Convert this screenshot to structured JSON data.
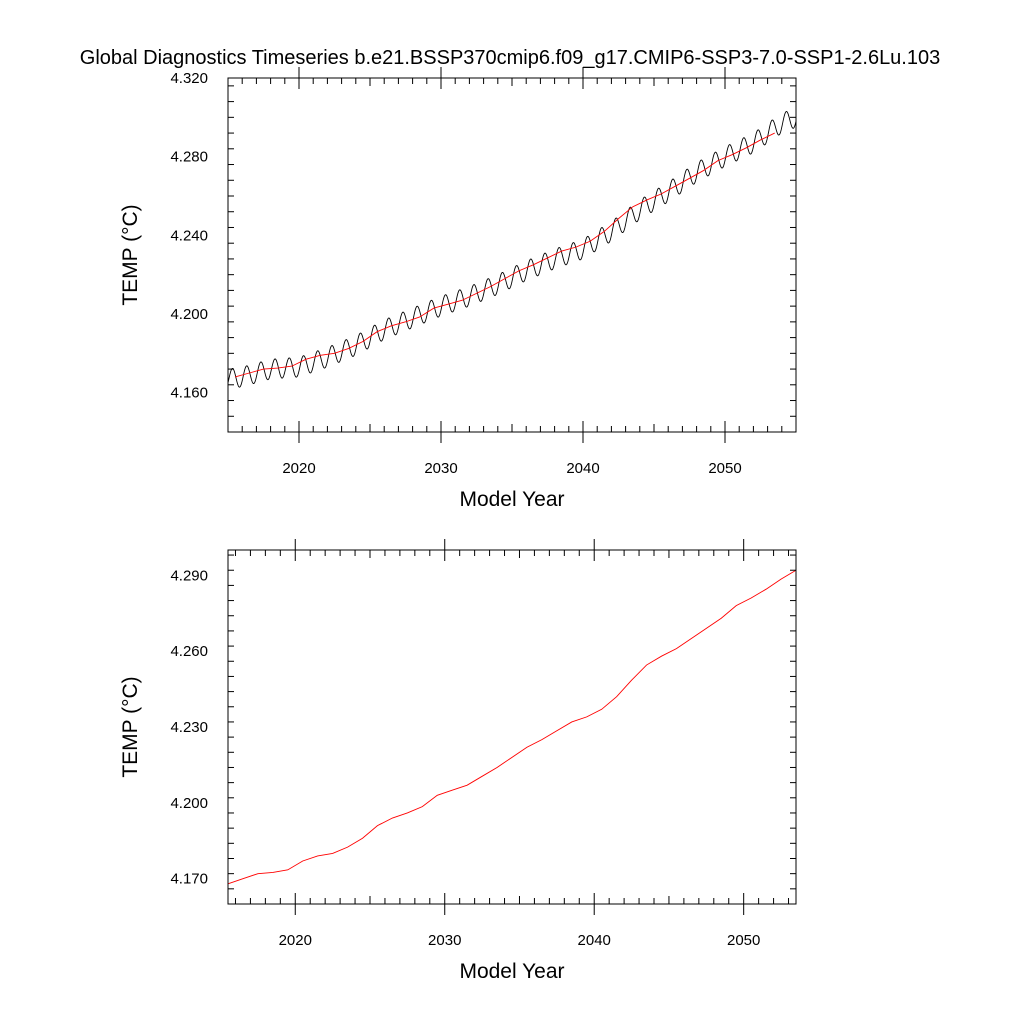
{
  "title": "Global Diagnostics Timeseries b.e21.BSSP370cmip6.f09_g17.CMIP6-SSP3-7.0-SSP1-2.6Lu.103",
  "colors": {
    "raw": "#000000",
    "smooth": "#ff0000",
    "axis": "#000000"
  },
  "chart_data": [
    {
      "type": "line",
      "xlabel": "Model Year",
      "ylabel": "TEMP (°C)",
      "xlim": [
        2015,
        2055
      ],
      "ylim": [
        4.14,
        4.32
      ],
      "yticks": [
        "4.160",
        "4.200",
        "4.240",
        "4.280",
        "4.320"
      ],
      "xticks": [
        "2020",
        "2030",
        "2040",
        "2050"
      ],
      "series": [
        {
          "style": "monthly-sine",
          "seasonal_amplitude": 0.005,
          "anchors_x": [
            2015,
            2016,
            2018,
            2020,
            2022,
            2024,
            2026,
            2028,
            2030,
            2032,
            2034,
            2036,
            2038,
            2040,
            2042,
            2044,
            2046,
            2048,
            2050,
            2052,
            2054,
            2055
          ],
          "anchors_y": [
            4.167,
            4.168,
            4.172,
            4.173,
            4.178,
            4.184,
            4.192,
            4.198,
            4.204,
            4.209,
            4.215,
            4.222,
            4.228,
            4.233,
            4.242,
            4.253,
            4.262,
            4.272,
            4.28,
            4.287,
            4.297,
            4.3
          ]
        },
        {
          "x": [
            2015.5,
            2016.5,
            2017.5,
            2018.5,
            2019.5,
            2020.5,
            2021.5,
            2022.5,
            2023.5,
            2024.5,
            2025.5,
            2026.5,
            2027.5,
            2028.5,
            2029.5,
            2030.5,
            2031.5,
            2032.5,
            2033.5,
            2034.5,
            2035.5,
            2036.5,
            2037.5,
            2038.5,
            2039.5,
            2040.5,
            2041.5,
            2042.5,
            2043.5,
            2044.5,
            2045.5,
            2046.5,
            2047.5,
            2048.5,
            2049.5,
            2050.5,
            2051.5,
            2052.5,
            2053.5
          ],
          "y": [
            4.168,
            4.17,
            4.172,
            4.1725,
            4.1735,
            4.177,
            4.179,
            4.18,
            4.1825,
            4.186,
            4.191,
            4.194,
            4.196,
            4.1985,
            4.203,
            4.205,
            4.207,
            4.2105,
            4.214,
            4.218,
            4.222,
            4.225,
            4.2285,
            4.232,
            4.234,
            4.237,
            4.242,
            4.2485,
            4.2545,
            4.258,
            4.261,
            4.265,
            4.269,
            4.273,
            4.278,
            4.281,
            4.2845,
            4.2885,
            4.292
          ]
        }
      ]
    },
    {
      "type": "line",
      "xlabel": "Model Year",
      "ylabel": "TEMP (°C)",
      "xlim": [
        2015.5,
        2053.5
      ],
      "ylim": [
        4.16,
        4.3
      ],
      "yticks": [
        "4.170",
        "4.200",
        "4.230",
        "4.260",
        "4.290"
      ],
      "xticks": [
        "2020",
        "2030",
        "2040",
        "2050"
      ],
      "series": [
        {
          "x": [
            2015.5,
            2016.5,
            2017.5,
            2018.5,
            2019.5,
            2020.5,
            2021.5,
            2022.5,
            2023.5,
            2024.5,
            2025.5,
            2026.5,
            2027.5,
            2028.5,
            2029.5,
            2030.5,
            2031.5,
            2032.5,
            2033.5,
            2034.5,
            2035.5,
            2036.5,
            2037.5,
            2038.5,
            2039.5,
            2040.5,
            2041.5,
            2042.5,
            2043.5,
            2044.5,
            2045.5,
            2046.5,
            2047.5,
            2048.5,
            2049.5,
            2050.5,
            2051.5,
            2052.5,
            2053.5
          ],
          "y": [
            4.168,
            4.17,
            4.172,
            4.1725,
            4.1735,
            4.177,
            4.179,
            4.18,
            4.1825,
            4.186,
            4.191,
            4.194,
            4.196,
            4.1985,
            4.203,
            4.205,
            4.207,
            4.2105,
            4.214,
            4.218,
            4.222,
            4.225,
            4.2285,
            4.232,
            4.234,
            4.237,
            4.242,
            4.2485,
            4.2545,
            4.258,
            4.261,
            4.265,
            4.269,
            4.273,
            4.278,
            4.281,
            4.2845,
            4.2885,
            4.292
          ]
        }
      ]
    }
  ]
}
